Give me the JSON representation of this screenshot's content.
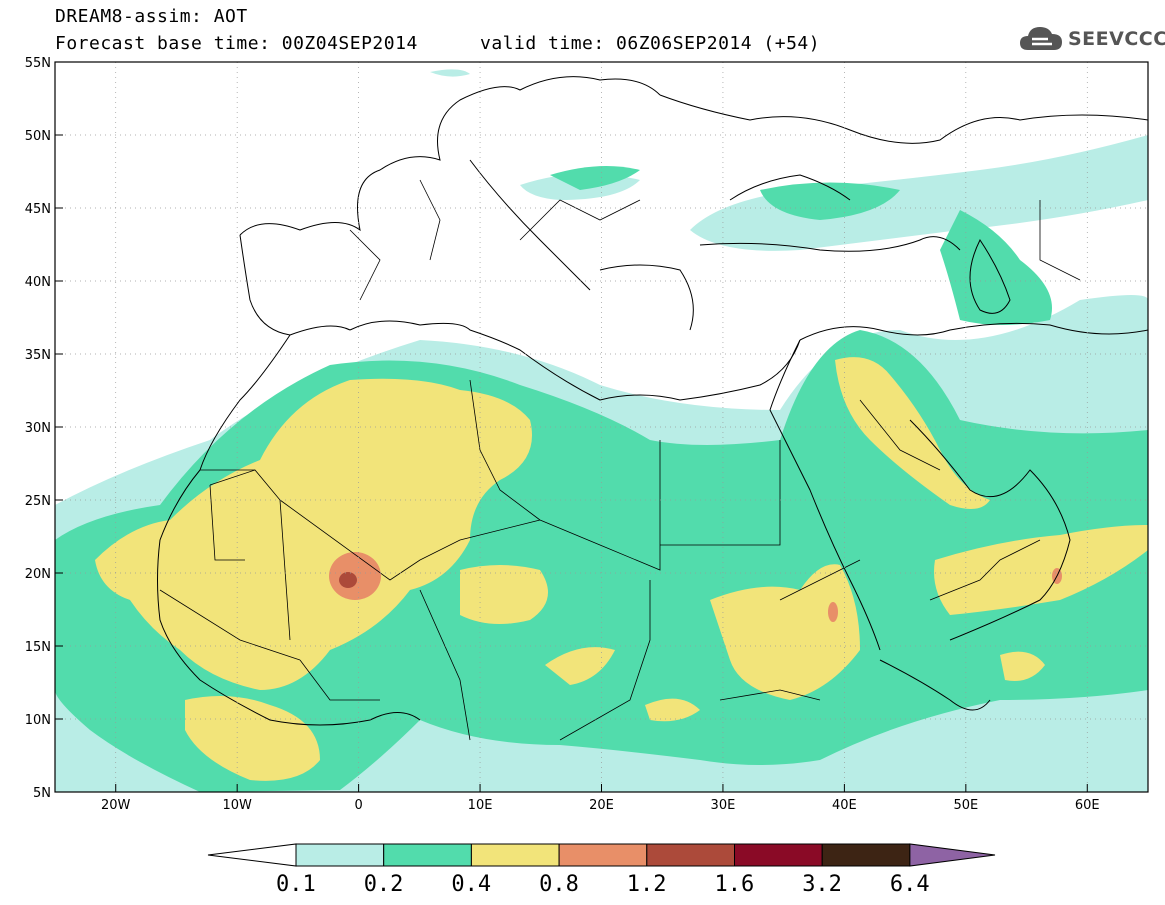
{
  "header": {
    "title": "DREAM8-assim: AOT",
    "base_time": "Forecast base time: 00Z04SEP2014",
    "valid_time": "valid time: 06Z06SEP2014 (+54)",
    "logo_text": "SEEVCCC"
  },
  "map": {
    "lon_range": [
      -25,
      65
    ],
    "lat_range": [
      5,
      55
    ],
    "lon_ticks": [
      {
        "value": -20,
        "label": "20W"
      },
      {
        "value": -10,
        "label": "10W"
      },
      {
        "value": 0,
        "label": "0"
      },
      {
        "value": 10,
        "label": "10E"
      },
      {
        "value": 20,
        "label": "20E"
      },
      {
        "value": 30,
        "label": "30E"
      },
      {
        "value": 40,
        "label": "40E"
      },
      {
        "value": 50,
        "label": "50E"
      },
      {
        "value": 60,
        "label": "60E"
      }
    ],
    "lat_ticks": [
      {
        "value": 55,
        "label": "55N"
      },
      {
        "value": 50,
        "label": "50N"
      },
      {
        "value": 45,
        "label": "45N"
      },
      {
        "value": 40,
        "label": "40N"
      },
      {
        "value": 35,
        "label": "35N"
      },
      {
        "value": 30,
        "label": "30N"
      },
      {
        "value": 25,
        "label": "25N"
      },
      {
        "value": 20,
        "label": "20N"
      },
      {
        "value": 15,
        "label": "15N"
      },
      {
        "value": 10,
        "label": "10N"
      },
      {
        "value": 5,
        "label": "5N"
      }
    ],
    "grid": true
  },
  "colorbar": {
    "colors": [
      "#ffffff",
      "#b9ede6",
      "#52dcac",
      "#f2e47a",
      "#e88f68",
      "#ac4a3a",
      "#8a0a26",
      "#3d2414",
      "#8e63a4"
    ],
    "labels": [
      "0.1",
      "0.2",
      "0.4",
      "0.8",
      "1.2",
      "1.6",
      "3.2",
      "6.4"
    ]
  }
}
